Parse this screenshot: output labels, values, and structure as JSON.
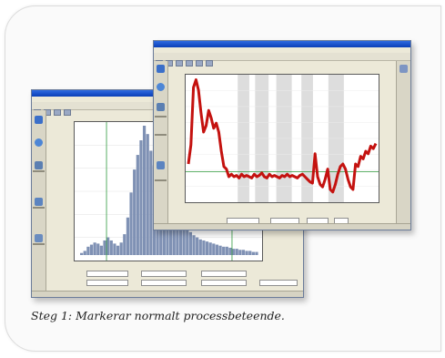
{
  "caption": "Steg 1: Markerar normalt processbeteende.",
  "colors": {
    "card_border": "#dcdcdc",
    "titlebar": "#0a3fb8",
    "histogram_bar": "#7f91b4",
    "trend_line": "#c4120f",
    "threshold_line": "#2e9a3c",
    "shaded_region": "#d4d4d4"
  },
  "chart_data": [
    {
      "type": "bar",
      "description": "histogram in back window",
      "values": [
        2,
        4,
        8,
        10,
        12,
        11,
        9,
        14,
        17,
        14,
        11,
        9,
        12,
        20,
        36,
        60,
        82,
        96,
        110,
        124,
        116,
        100,
        86,
        90,
        112,
        118,
        102,
        80,
        60,
        46,
        36,
        30,
        26,
        22,
        19,
        17,
        15,
        14,
        13,
        12,
        11,
        10,
        9,
        8,
        8,
        7,
        6,
        6,
        5,
        5,
        4,
        4,
        3,
        3
      ]
    },
    {
      "type": "line",
      "description": "process trend in front window",
      "ylim": [
        0,
        100
      ],
      "values": [
        30,
        45,
        90,
        96,
        88,
        70,
        55,
        60,
        72,
        66,
        58,
        62,
        55,
        40,
        28,
        26,
        20,
        22,
        20,
        21,
        19,
        22,
        20,
        21,
        20,
        19,
        22,
        20,
        21,
        23,
        20,
        19,
        22,
        20,
        21,
        20,
        19,
        21,
        20,
        22,
        20,
        21,
        20,
        19,
        21,
        22,
        20,
        18,
        16,
        15,
        38,
        20,
        14,
        12,
        18,
        26,
        10,
        8,
        14,
        22,
        28,
        30,
        26,
        18,
        12,
        10,
        30,
        28,
        36,
        34,
        40,
        38,
        44,
        42,
        46
      ]
    }
  ]
}
